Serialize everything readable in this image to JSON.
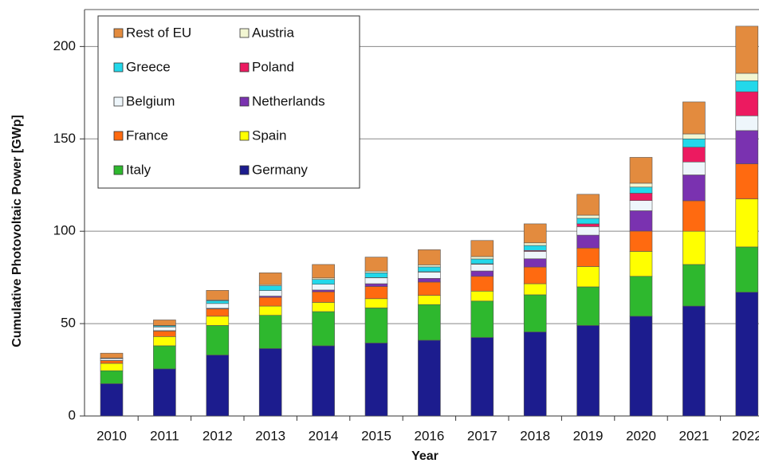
{
  "chart_data": {
    "type": "stacked_bar",
    "xlabel": "Year",
    "ylabel": "Cumulative Photovoltaic Power [GWp]",
    "categories": [
      "2010",
      "2011",
      "2012",
      "2013",
      "2014",
      "2015",
      "2016",
      "2017",
      "2018",
      "2019",
      "2020",
      "2021",
      "2022"
    ],
    "series": [
      {
        "name": "Germany",
        "color": "#1c1c8e",
        "values": [
          17.5,
          25.5,
          33,
          36.5,
          38,
          39.5,
          41,
          42.5,
          45.5,
          49,
          54,
          59.5,
          67
        ]
      },
      {
        "name": "Italy",
        "color": "#2eb82e",
        "values": [
          7,
          12.5,
          16,
          18,
          18.5,
          19,
          19.3,
          19.7,
          20.1,
          20.9,
          21.6,
          22.5,
          24.5
        ]
      },
      {
        "name": "Spain",
        "color": "#ffff00",
        "values": [
          4,
          5,
          5,
          5,
          5,
          5,
          5,
          5.4,
          6,
          11,
          13.5,
          18,
          26
        ]
      },
      {
        "name": "France",
        "color": "#ff6a10",
        "values": [
          1.5,
          3,
          4,
          4.7,
          5.7,
          6.6,
          7.2,
          8,
          9,
          10,
          11,
          16.5,
          19
        ]
      },
      {
        "name": "Netherlands",
        "color": "#7a32b0",
        "values": [
          0.1,
          0.2,
          0.3,
          0.7,
          1,
          1.5,
          2,
          2.9,
          4.5,
          7,
          11,
          14,
          18
        ]
      },
      {
        "name": "Belgium",
        "color": "#eef6fb",
        "values": [
          1,
          2,
          2.6,
          3,
          3.1,
          3.2,
          3.4,
          3.6,
          4,
          4.6,
          5.5,
          7,
          8
        ]
      },
      {
        "name": "Poland",
        "color": "#ec1a60",
        "values": [
          0,
          0,
          0,
          0,
          0,
          0.1,
          0.2,
          0.3,
          0.5,
          1.5,
          4,
          8,
          13
        ]
      },
      {
        "name": "Greece",
        "color": "#22d8ea",
        "values": [
          0.2,
          0.6,
          1.5,
          2.6,
          2.6,
          2.6,
          2.6,
          2.6,
          2.7,
          3,
          3.3,
          4.5,
          6
        ]
      },
      {
        "name": "Austria",
        "color": "#f2f6d2",
        "values": [
          0.1,
          0.2,
          0.4,
          0.6,
          0.8,
          0.9,
          1.1,
          1.3,
          1.4,
          1.7,
          2.1,
          2.7,
          4
        ]
      },
      {
        "name": "Rest of EU",
        "color": "#e38b3e",
        "values": [
          2.6,
          3,
          5.2,
          6.4,
          7.3,
          7.6,
          8.2,
          8.7,
          10.3,
          11.3,
          14,
          17.3,
          25.5
        ]
      }
    ],
    "ylim": [
      0,
      220
    ],
    "yticks": [
      0,
      50,
      100,
      150,
      200
    ],
    "grid": true,
    "legend": "upper left"
  }
}
